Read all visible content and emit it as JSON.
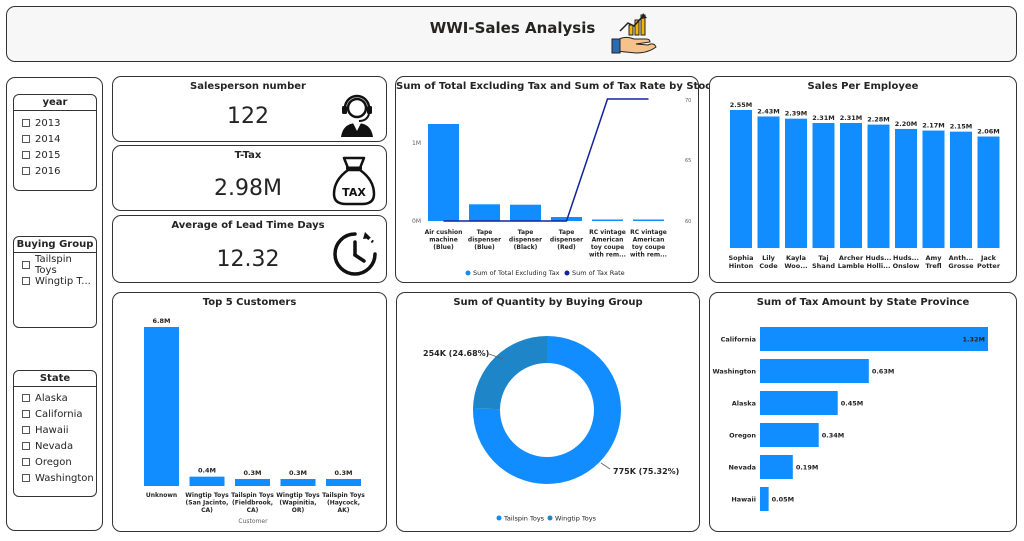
{
  "header": {
    "title": "WWI-Sales Analysis",
    "icon": "sales-growth-icon"
  },
  "colors": {
    "primary": "#118dff",
    "secondary": "#1e86c8",
    "line": "#12239e",
    "border": "#333333"
  },
  "slicers": {
    "year": {
      "title": "year",
      "items": [
        "2013",
        "2014",
        "2015",
        "2016"
      ]
    },
    "buying_group": {
      "title": "Buying Group",
      "items": [
        "Tailspin Toys",
        "Wingtip T..."
      ]
    },
    "state": {
      "title": "State",
      "items": [
        "Alaska",
        "California",
        "Hawaii",
        "Nevada",
        "Oregon",
        "Washington"
      ]
    }
  },
  "kpis": [
    {
      "title": "Salesperson number",
      "value": "122",
      "icon": "headset-person-icon"
    },
    {
      "title": "T-Tax",
      "value": "2.98M",
      "icon": "tax-bag-icon"
    },
    {
      "title": "Average of Lead Time Days",
      "value": "12.32",
      "icon": "clock-icon"
    }
  ],
  "stock_chart": {
    "title": "Sum of Total Excluding Tax and Sum of Tax Rate by Stock Item",
    "left_ticks": [
      "1M",
      "0M"
    ],
    "right_ticks": [
      "70",
      "65",
      "60"
    ],
    "legend": [
      "Sum of Total Excluding Tax",
      "Sum of Tax Rate"
    ]
  },
  "employee_chart": {
    "title": "Sales Per Employee"
  },
  "customer_chart": {
    "title": "Top 5 Customers",
    "xlabel": "Customer"
  },
  "buying_group_chart": {
    "title": "Sum of Quantity by Buying Group",
    "legend": [
      "Tailspin Toys",
      "Wingtip Toys"
    ],
    "label_wingtip": "254K (24.68%)",
    "label_tailspin": "775K (75.32%)"
  },
  "state_chart": {
    "title": "Sum of Tax Amount by State Province"
  },
  "chart_data": [
    {
      "type": "bar",
      "title": "Sum of Total Excluding Tax and Sum of Tax Rate by Stock Item",
      "categories": [
        [
          "Air cushion",
          "machine",
          "(Blue)"
        ],
        [
          "Tape",
          "dispenser",
          "(Blue)"
        ],
        [
          "Tape",
          "dispenser",
          "(Black)"
        ],
        [
          "Tape",
          "dispenser",
          "(Red)"
        ],
        [
          "RC vintage",
          "American",
          "toy coupe",
          "with rem..."
        ],
        [
          "RC vintage",
          "American",
          "toy coupe",
          "with rem..."
        ]
      ],
      "series": [
        {
          "name": "Sum of Total Excluding Tax",
          "type": "bar",
          "values": [
            1220000,
            210000,
            205000,
            50000,
            15000,
            15000
          ]
        },
        {
          "name": "Sum of Tax Rate",
          "type": "line",
          "values": [
            60,
            60,
            60,
            60,
            70,
            70
          ]
        }
      ],
      "ylim": [
        0,
        1500000
      ],
      "y2lim": [
        60,
        70
      ]
    },
    {
      "type": "bar",
      "title": "Sales Per Employee",
      "categories": [
        [
          "Sophia",
          "Hinton"
        ],
        [
          "Lily",
          "Code"
        ],
        [
          "Kayla",
          "Woo..."
        ],
        [
          "Taj",
          "Shand"
        ],
        [
          "Archer",
          "Lamble"
        ],
        [
          "Huds...",
          "Holli..."
        ],
        [
          "Huds...",
          "Onslow"
        ],
        [
          "Amy",
          "Trefl"
        ],
        [
          "Anth...",
          "Grosse"
        ],
        [
          "Jack",
          "Potter"
        ]
      ],
      "values": [
        2550000,
        2430000,
        2390000,
        2310000,
        2310000,
        2280000,
        2200000,
        2170000,
        2150000,
        2060000
      ],
      "labels": [
        "2.55M",
        "2.43M",
        "2.39M",
        "2.31M",
        "2.31M",
        "2.28M",
        "2.20M",
        "2.17M",
        "2.15M",
        "2.06M"
      ],
      "ylim": [
        0,
        2550000
      ]
    },
    {
      "type": "bar",
      "title": "Top 5 Customers",
      "xlabel": "Customer",
      "categories": [
        [
          "Unknown"
        ],
        [
          "Wingtip Toys",
          "(San Jacinto,",
          "CA)"
        ],
        [
          "Tailspin Toys",
          "(Fieldbrook,",
          "CA)"
        ],
        [
          "Wingtip Toys",
          "(Wapinitia,",
          "OR)"
        ],
        [
          "Tailspin Toys",
          "(Haycock,",
          "AK)"
        ]
      ],
      "values": [
        6800000,
        400000,
        300000,
        300000,
        300000
      ],
      "labels": [
        "6.8M",
        "0.4M",
        "0.3M",
        "0.3M",
        "0.3M"
      ],
      "ylim": [
        0,
        6800000
      ]
    },
    {
      "type": "pie",
      "title": "Sum of Quantity by Buying Group",
      "categories": [
        "Tailspin Toys",
        "Wingtip Toys"
      ],
      "values": [
        775000,
        254000
      ],
      "percentages": [
        75.32,
        24.68
      ],
      "labels": [
        "775K (75.32%)",
        "254K (24.68%)"
      ]
    },
    {
      "type": "bar",
      "orientation": "horizontal",
      "title": "Sum of Tax Amount by State Province",
      "categories": [
        "California",
        "Washington",
        "Alaska",
        "Oregon",
        "Nevada",
        "Hawaii"
      ],
      "values": [
        1320000,
        630000,
        450000,
        340000,
        190000,
        50000
      ],
      "labels": [
        "1.32M",
        "0.63M",
        "0.45M",
        "0.34M",
        "0.19M",
        "0.05M"
      ],
      "xlim": [
        0,
        1320000
      ]
    }
  ]
}
